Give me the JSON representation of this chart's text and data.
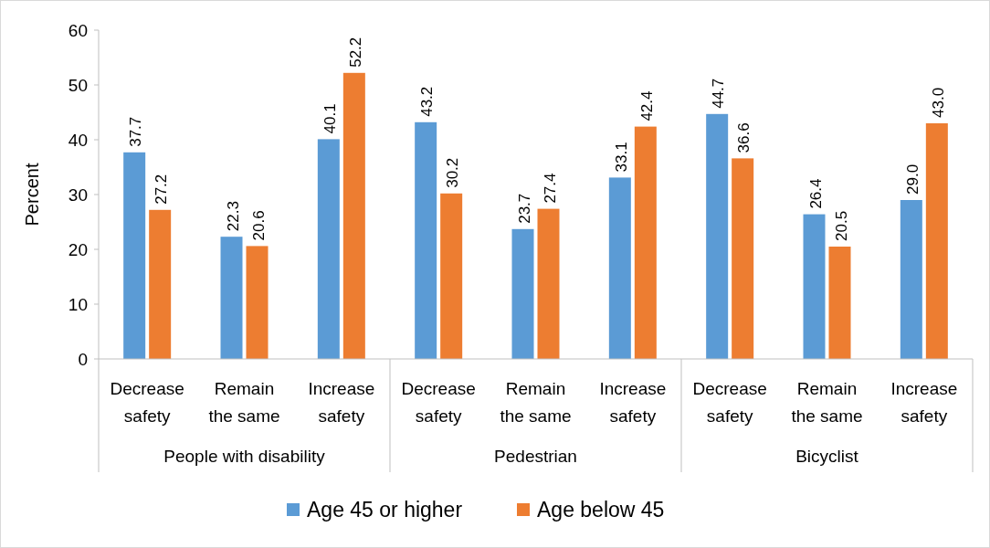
{
  "chart_data": {
    "type": "bar",
    "ylabel": "Percent",
    "categories": [
      "Decrease safety",
      "Remain the same",
      "Increase safety",
      "Decrease safety",
      "Remain the same",
      "Increase safety",
      "Decrease safety",
      "Remain the same",
      "Increase safety"
    ],
    "series": [
      {
        "name": "Age 45 or higher",
        "color": "#5b9bd5",
        "values": [
          37.7,
          22.3,
          40.1,
          43.2,
          23.7,
          33.1,
          44.7,
          26.4,
          29.0
        ],
        "value_labels": [
          "37.7",
          "22.3",
          "40.1",
          "43.2",
          "23.7",
          "33.1",
          "44.7",
          "26.4",
          "29.0"
        ]
      },
      {
        "name": "Age below 45",
        "color": "#ed7d31",
        "values": [
          27.2,
          20.6,
          52.2,
          30.2,
          27.4,
          42.4,
          36.6,
          20.5,
          43.0
        ],
        "value_labels": [
          "27.2",
          "20.6",
          "52.2",
          "30.2",
          "27.4",
          "42.4",
          "36.6",
          "20.5",
          "43.0"
        ]
      }
    ],
    "annotations": [
      "People with disability",
      "Pedestrian",
      "Bicyclist"
    ],
    "ylim": [
      0,
      60
    ],
    "yticks": [
      0,
      10,
      20,
      30,
      40,
      50,
      60
    ],
    "legend": "bottom"
  }
}
